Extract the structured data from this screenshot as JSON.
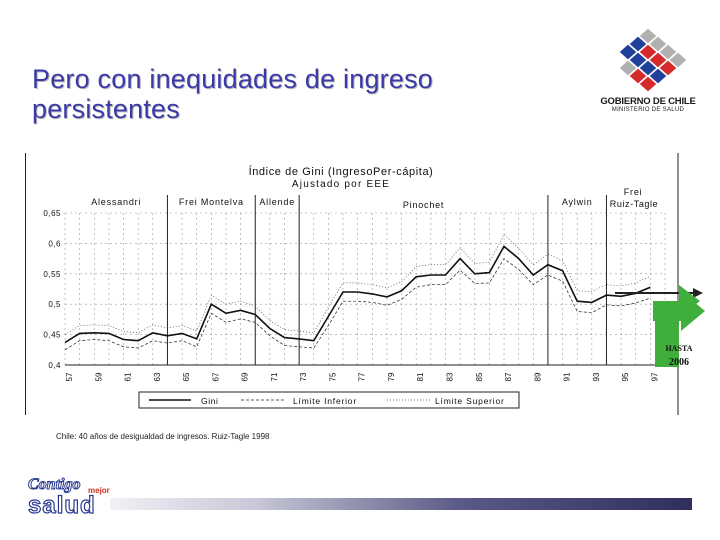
{
  "slide": {
    "title_line1": "Pero con inequidades de ingreso",
    "title_line2": "persistentes",
    "source": "Chile: 40 años de desigualdad de ingresos. Ruiz-Tagle 1998",
    "gov_logo_text": "GOBIERNO DE CHILE",
    "gov_logo_sub": "MINISTERIO DE SALUD",
    "campaign_logo": {
      "line1": "Contigo",
      "mejor": "mejor",
      "line2": "salud"
    },
    "colors": {
      "title": "#3a3aa8",
      "arrow": "#3fae3a",
      "chart_line": "#111111"
    }
  },
  "chart_data": {
    "type": "line",
    "title": "Índice de Gini (IngresoPer-cápita)",
    "subtitle": "Ajustado por EEE",
    "ylim": [
      0.4,
      0.65
    ],
    "yticks": [
      "0,65",
      "0,6",
      "0,55",
      "0,5",
      "0,45",
      "0,4"
    ],
    "xticks": [
      "57",
      "59",
      "61",
      "63",
      "65",
      "67",
      "69",
      "71",
      "73",
      "75",
      "77",
      "79",
      "81",
      "83",
      "85",
      "87",
      "89",
      "91",
      "93",
      "95",
      "97"
    ],
    "x": [
      1957,
      1958,
      1959,
      1960,
      1961,
      1962,
      1963,
      1964,
      1965,
      1966,
      1967,
      1968,
      1969,
      1970,
      1971,
      1972,
      1973,
      1974,
      1975,
      1976,
      1977,
      1978,
      1979,
      1980,
      1981,
      1982,
      1983,
      1984,
      1985,
      1986,
      1987,
      1988,
      1989,
      1990,
      1991,
      1992,
      1993,
      1994,
      1995,
      1996,
      1997
    ],
    "series": [
      {
        "name": "Gini",
        "values": [
          0.437,
          0.452,
          0.453,
          0.452,
          0.442,
          0.44,
          0.453,
          0.448,
          0.452,
          0.443,
          0.5,
          0.485,
          0.49,
          0.483,
          0.46,
          0.445,
          0.443,
          0.44,
          0.48,
          0.52,
          0.52,
          0.517,
          0.512,
          0.522,
          0.545,
          0.548,
          0.548,
          0.575,
          0.55,
          0.552,
          0.595,
          0.575,
          0.548,
          0.565,
          0.555,
          0.505,
          0.503,
          0.515,
          0.513,
          0.518,
          0.528
        ]
      },
      {
        "name": "Límite Inferior",
        "values": [
          0.425,
          0.44,
          0.442,
          0.44,
          0.43,
          0.428,
          0.44,
          0.436,
          0.44,
          0.43,
          0.485,
          0.47,
          0.476,
          0.47,
          0.448,
          0.432,
          0.43,
          0.428,
          0.465,
          0.505,
          0.505,
          0.503,
          0.498,
          0.508,
          0.528,
          0.532,
          0.532,
          0.556,
          0.534,
          0.535,
          0.575,
          0.557,
          0.532,
          0.548,
          0.538,
          0.488,
          0.486,
          0.499,
          0.497,
          0.502,
          0.51
        ]
      },
      {
        "name": "Límite Superior",
        "values": [
          0.45,
          0.465,
          0.466,
          0.465,
          0.455,
          0.453,
          0.466,
          0.461,
          0.465,
          0.456,
          0.515,
          0.5,
          0.505,
          0.497,
          0.473,
          0.458,
          0.456,
          0.453,
          0.495,
          0.535,
          0.535,
          0.532,
          0.527,
          0.537,
          0.562,
          0.565,
          0.565,
          0.593,
          0.567,
          0.569,
          0.615,
          0.592,
          0.565,
          0.582,
          0.572,
          0.522,
          0.521,
          0.532,
          0.53,
          0.535,
          0.546
        ]
      }
    ],
    "legend": [
      "Gini",
      "Límite Inferior",
      "Límite Superior"
    ],
    "legend_position": "bottom",
    "periods": [
      {
        "label": "Alessandri",
        "start": 1957,
        "end": 1964
      },
      {
        "label": "Frei Montelva",
        "start": 1964,
        "end": 1970
      },
      {
        "label": "Allende",
        "start": 1970,
        "end": 1973
      },
      {
        "label": "Pinochet",
        "start": 1973,
        "end": 1990
      },
      {
        "label": "Aylwin",
        "start": 1990,
        "end": 1994
      },
      {
        "label": "Frei",
        "label2": "Ruiz-Tagle",
        "start": 1994,
        "end": 1998
      }
    ],
    "annotation": {
      "text1": "HASTA",
      "text2": "2006"
    }
  }
}
